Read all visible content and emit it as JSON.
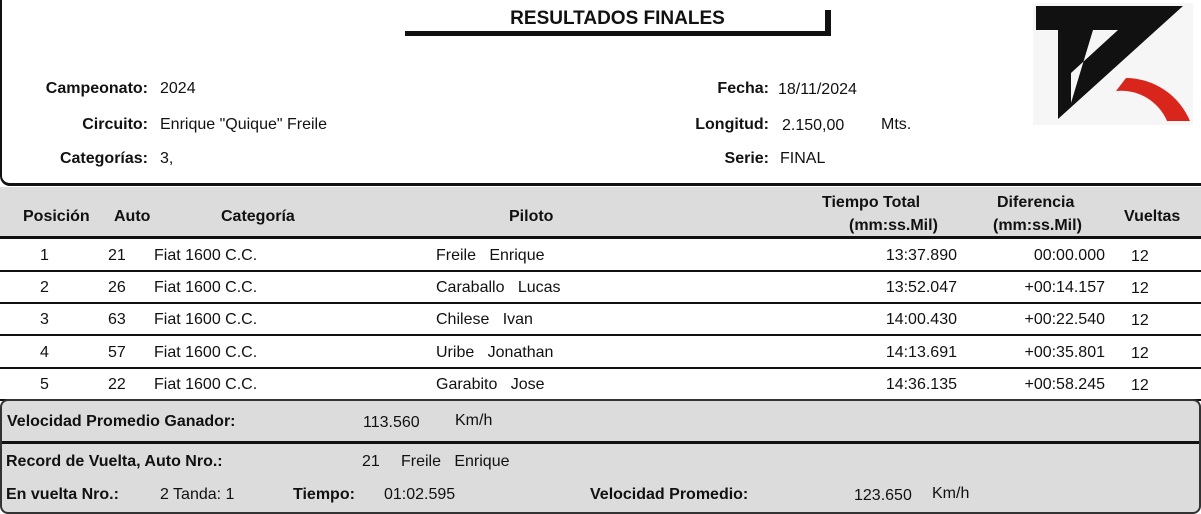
{
  "title": "RESULTADOS FINALES",
  "info": {
    "campeonato_label": "Campeonato:",
    "campeonato": "2024",
    "circuito_label": "Circuito:",
    "circuito": "Enrique \"Quique\" Freile",
    "categorias_label": "Categorías:",
    "categorias": "3,",
    "fecha_label": "Fecha:",
    "fecha": "18/11/2024",
    "longitud_label": "Longitud:",
    "longitud": "2.150,00",
    "longitud_unit": "Mts.",
    "serie_label": "Serie:",
    "serie": "FINAL"
  },
  "logo": {
    "colors": {
      "black": "#111111",
      "red": "#d9261c"
    }
  },
  "table": {
    "headers": {
      "posicion": "Posición",
      "auto": "Auto",
      "categoria": "Categoría",
      "piloto": "Piloto",
      "tiempo1": "Tiempo Total",
      "tiempo2": "(mm:ss.Mil)",
      "dif1": "Diferencia",
      "dif2": "(mm:ss.Mil)",
      "vueltas": "Vueltas"
    },
    "rows": [
      {
        "pos": "1",
        "auto": "21",
        "cat": "Fiat 1600 C.C.",
        "piloto": "Freile   Enrique",
        "tiempo": "13:37.890",
        "dif": "00:00.000",
        "vueltas": "12"
      },
      {
        "pos": "2",
        "auto": "26",
        "cat": "Fiat 1600 C.C.",
        "piloto": "Caraballo   Lucas",
        "tiempo": "13:52.047",
        "dif": "+00:14.157",
        "vueltas": "12"
      },
      {
        "pos": "3",
        "auto": "63",
        "cat": "Fiat 1600 C.C.",
        "piloto": "Chilese   Ivan",
        "tiempo": "14:00.430",
        "dif": "+00:22.540",
        "vueltas": "12"
      },
      {
        "pos": "4",
        "auto": "57",
        "cat": "Fiat 1600 C.C.",
        "piloto": "Uribe   Jonathan",
        "tiempo": "14:13.691",
        "dif": "+00:35.801",
        "vueltas": "12"
      },
      {
        "pos": "5",
        "auto": "22",
        "cat": "Fiat 1600 C.C.",
        "piloto": "Garabito   Jose",
        "tiempo": "14:36.135",
        "dif": "+00:58.245",
        "vueltas": "12"
      }
    ]
  },
  "footer": {
    "vel_ganador_label": "Velocidad Promedio Ganador:",
    "vel_ganador": "113.560",
    "vel_unit": "Km/h",
    "record_label": "Record de Vuelta, Auto Nro.:",
    "record_auto": "21",
    "record_piloto": "Freile   Enrique",
    "vuelta_label": "En vuelta Nro.:",
    "vuelta": "2 Tanda: 1",
    "tiempo_label": "Tiempo:",
    "tiempo": "01:02.595",
    "vel_prom_label": "Velocidad Promedio:",
    "vel_prom": "123.650",
    "vel_prom_unit": "Km/h"
  }
}
